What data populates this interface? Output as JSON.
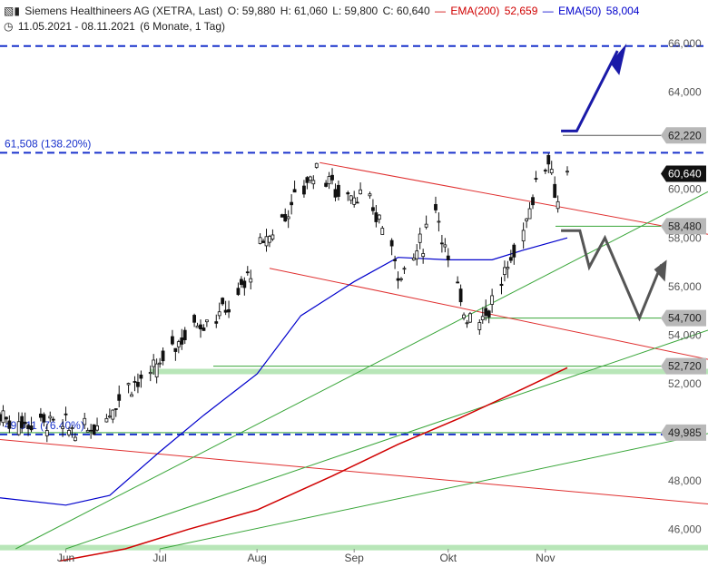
{
  "header": {
    "instrument": "Siemens Healthineers AG (XETRA, Last)",
    "open": "O: 59,880",
    "high": "H: 61,060",
    "low": "L: 59,800",
    "close": "C: 60,640",
    "ema200_label": "EMA(200)",
    "ema200_value": "52,659",
    "ema50_label": "EMA(50)",
    "ema50_value": "58,004",
    "date_range": "11.05.2021 - 08.11.2021",
    "period": "(6 Monate, 1 Tag)",
    "colors": {
      "ema200": "#d00000",
      "ema50": "#0000cc"
    },
    "icons": [
      "candles-icon",
      "clock-icon"
    ]
  },
  "chart_data": {
    "type": "candlestick",
    "y_axis": {
      "min": 45200,
      "max": 66300,
      "position": "right",
      "ticks": [
        {
          "value": 46000,
          "label": "46,000"
        },
        {
          "value": 48000,
          "label": "48,000"
        },
        {
          "value": 52000,
          "label": "52,000"
        },
        {
          "value": 54000,
          "label": "54,000"
        },
        {
          "value": 56000,
          "label": "56,000"
        },
        {
          "value": 58000,
          "label": "58,000"
        },
        {
          "value": 60000,
          "label": "60,000"
        },
        {
          "value": 64000,
          "label": "64,000"
        },
        {
          "value": 66000,
          "label": "66,000"
        }
      ]
    },
    "x_axis": {
      "start": "2021-05-11",
      "end": "2021-11-08",
      "ticks": [
        {
          "date": "2021-06-01",
          "label": "Jun"
        },
        {
          "date": "2021-07-01",
          "label": "Jul"
        },
        {
          "date": "2021-08-01",
          "label": "Aug"
        },
        {
          "date": "2021-09-01",
          "label": "Sep"
        },
        {
          "date": "2021-10-01",
          "label": "Okt"
        },
        {
          "date": "2021-11-01",
          "label": "Nov"
        }
      ]
    },
    "price_points": [
      [
        "2021-05-11",
        50700
      ],
      [
        "2021-05-17",
        50400
      ],
      [
        "2021-05-24",
        50500
      ],
      [
        "2021-05-31",
        50200
      ],
      [
        "2021-06-07",
        50000
      ],
      [
        "2021-06-14",
        50700
      ],
      [
        "2021-06-21",
        52000
      ],
      [
        "2021-06-28",
        52200
      ],
      [
        "2021-07-05",
        53500
      ],
      [
        "2021-07-12",
        54500
      ],
      [
        "2021-07-19",
        54800
      ],
      [
        "2021-07-26",
        55600
      ],
      [
        "2021-08-02",
        57500
      ],
      [
        "2021-08-09",
        58800
      ],
      [
        "2021-08-16",
        60200
      ],
      [
        "2021-08-21",
        61000
      ],
      [
        "2021-08-26",
        60000
      ],
      [
        "2021-09-02",
        59800
      ],
      [
        "2021-09-09",
        58800
      ],
      [
        "2021-09-16",
        56500
      ],
      [
        "2021-09-23",
        57800
      ],
      [
        "2021-09-27",
        59500
      ],
      [
        "2021-10-01",
        57000
      ],
      [
        "2021-10-06",
        55000
      ],
      [
        "2021-10-11",
        54700
      ],
      [
        "2021-10-16",
        55500
      ],
      [
        "2021-10-21",
        57000
      ],
      [
        "2021-10-26",
        58700
      ],
      [
        "2021-10-28",
        59800
      ],
      [
        "2021-11-02",
        61500
      ],
      [
        "2021-11-05",
        59500
      ],
      [
        "2021-11-08",
        60640
      ]
    ],
    "series": [
      {
        "name": "EMA(200)",
        "color": "#d00000",
        "points": [
          [
            "2021-05-30",
            44700
          ],
          [
            "2021-06-20",
            45200
          ],
          [
            "2021-07-10",
            46000
          ],
          [
            "2021-08-01",
            46800
          ],
          [
            "2021-08-25",
            48200
          ],
          [
            "2021-09-15",
            49500
          ],
          [
            "2021-10-05",
            50600
          ],
          [
            "2021-10-25",
            51800
          ],
          [
            "2021-11-08",
            52659
          ]
        ]
      },
      {
        "name": "EMA(50)",
        "color": "#0000cc",
        "points": [
          [
            "2021-05-11",
            47300
          ],
          [
            "2021-06-01",
            47000
          ],
          [
            "2021-06-15",
            47400
          ],
          [
            "2021-07-01",
            49200
          ],
          [
            "2021-07-15",
            50700
          ],
          [
            "2021-08-01",
            52400
          ],
          [
            "2021-08-15",
            54800
          ],
          [
            "2021-09-01",
            56200
          ],
          [
            "2021-09-15",
            57200
          ],
          [
            "2021-10-01",
            57100
          ],
          [
            "2021-10-15",
            57100
          ],
          [
            "2021-10-25",
            57500
          ],
          [
            "2021-11-08",
            58004
          ]
        ]
      }
    ],
    "annotations": {
      "fib_levels": [
        {
          "value": 61508,
          "label": "61,508 (138.20%)"
        },
        {
          "value": 49911,
          "label": "49,911 (76.40%)"
        },
        {
          "value": 65900,
          "label": ""
        }
      ],
      "price_tags": [
        {
          "value": 62220,
          "label": "62,220",
          "style": "gray"
        },
        {
          "value": 60640,
          "label": "60,640",
          "style": "black"
        },
        {
          "value": 58480,
          "label": "58,480",
          "style": "gray"
        },
        {
          "value": 54700,
          "label": "54,700",
          "style": "gray"
        },
        {
          "value": 52720,
          "label": "52,720",
          "style": "gray"
        },
        {
          "value": 49985,
          "label": "49,985",
          "style": "gray"
        }
      ],
      "support_zones": [
        52500,
        45250
      ],
      "colors": {
        "fib": "#1a33cc",
        "trend_red": "#e03030",
        "trend_green": "#3aa63a",
        "zone": "#b8e6b8",
        "arrow_up": "#1a1aa8",
        "arrow_alt": "#555555"
      }
    },
    "title": "",
    "xlabel": "",
    "ylabel": "",
    "grid": false,
    "legend": "header"
  }
}
